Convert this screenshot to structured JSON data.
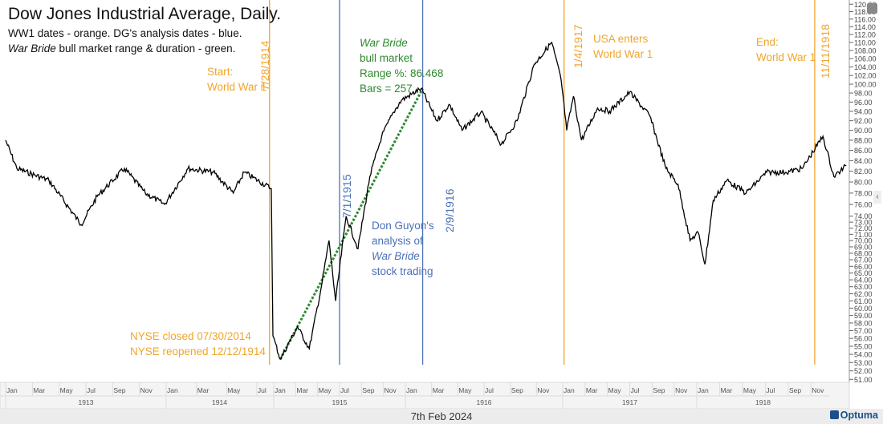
{
  "header": {
    "title": "Dow Jones Industrial Average, Daily.",
    "subtitle_line1": "WW1 dates - orange. DG's analysis dates - blue.",
    "subtitle_line2_italic": "War Bride",
    "subtitle_line2_rest": " bull market range & duration - green."
  },
  "annotations": {
    "start": [
      "Start:",
      "World War 1"
    ],
    "nyse": [
      "NYSE closed 07/30/2014",
      "NYSE reopened 12/12/1914"
    ],
    "war_bride": {
      "title": "War Bride",
      "lines": [
        "bull market",
        "Range %: 86.468",
        "Bars = 257"
      ]
    },
    "dg": {
      "line1": "Don Guyon's",
      "line2": "analysis of",
      "line3_italic": "War Bride",
      "line4": "stock trading"
    },
    "usa": [
      "USA enters",
      "World War 1"
    ],
    "end": [
      "End:",
      "World War 1"
    ],
    "date_labels": {
      "d1": "7/28/1914",
      "d2": "7/1/1915",
      "d3": "2/9/1916",
      "d4": "1/4/1917",
      "d5": "11/11/1918"
    }
  },
  "colors": {
    "ww1": "#f0a52c",
    "dg": "#4b70b8",
    "war_bride": "#2d8a2d",
    "price": "#000000"
  },
  "footer": {
    "date": "7th Feb 2024",
    "logo": "Optuma"
  },
  "chart_data": {
    "type": "line",
    "title": "Dow Jones Industrial Average, Daily.",
    "yscale": "log",
    "ylim": [
      51,
      120
    ],
    "y_ticks": [
      120,
      118,
      116,
      114,
      112,
      110,
      108,
      106,
      104,
      102,
      100,
      98,
      96,
      94,
      92,
      90,
      88,
      86,
      84,
      82,
      80,
      78,
      76,
      74,
      73,
      72,
      71,
      70,
      69,
      68,
      67,
      66,
      65,
      64,
      63,
      62,
      61,
      60,
      59,
      58,
      57,
      56,
      55,
      54,
      53,
      52,
      51
    ],
    "x_month_ticks": [
      {
        "t": 1913.0,
        "label": "Jan"
      },
      {
        "t": 1913.167,
        "label": "Mar"
      },
      {
        "t": 1913.333,
        "label": "May"
      },
      {
        "t": 1913.5,
        "label": "Jul"
      },
      {
        "t": 1913.667,
        "label": "Sep"
      },
      {
        "t": 1913.833,
        "label": "Nov"
      },
      {
        "t": 1914.0,
        "label": "Jan"
      },
      {
        "t": 1914.167,
        "label": "Mar"
      },
      {
        "t": 1914.333,
        "label": "May"
      },
      {
        "t": 1914.5,
        "label": "Jul"
      },
      {
        "t": 1915.0,
        "label": "Jan"
      },
      {
        "t": 1915.167,
        "label": "Mar"
      },
      {
        "t": 1915.333,
        "label": "May"
      },
      {
        "t": 1915.5,
        "label": "Jul"
      },
      {
        "t": 1915.667,
        "label": "Sep"
      },
      {
        "t": 1915.833,
        "label": "Nov"
      },
      {
        "t": 1916.0,
        "label": "Jan"
      },
      {
        "t": 1916.167,
        "label": "Mar"
      },
      {
        "t": 1916.333,
        "label": "May"
      },
      {
        "t": 1916.5,
        "label": "Jul"
      },
      {
        "t": 1916.667,
        "label": "Sep"
      },
      {
        "t": 1916.833,
        "label": "Nov"
      },
      {
        "t": 1917.0,
        "label": "Jan"
      },
      {
        "t": 1917.167,
        "label": "Mar"
      },
      {
        "t": 1917.333,
        "label": "May"
      },
      {
        "t": 1917.5,
        "label": "Jul"
      },
      {
        "t": 1917.667,
        "label": "Sep"
      },
      {
        "t": 1917.833,
        "label": "Nov"
      },
      {
        "t": 1918.0,
        "label": "Jan"
      },
      {
        "t": 1918.167,
        "label": "Mar"
      },
      {
        "t": 1918.333,
        "label": "May"
      },
      {
        "t": 1918.5,
        "label": "Jul"
      },
      {
        "t": 1918.667,
        "label": "Sep"
      },
      {
        "t": 1918.833,
        "label": "Nov"
      }
    ],
    "x_years": [
      {
        "label": "1913",
        "start": 1913,
        "end": 1914
      },
      {
        "label": "1914",
        "start": 1914,
        "end": 1914.95
      },
      {
        "label": "1915",
        "start": 1915,
        "end": 1916
      },
      {
        "label": "1916",
        "start": 1916,
        "end": 1917
      },
      {
        "label": "1917",
        "start": 1917,
        "end": 1918
      },
      {
        "label": "1918",
        "start": 1918,
        "end": 1919.2
      }
    ],
    "series": [
      {
        "name": "DJIA",
        "t": [
          1913.0,
          1913.07,
          1913.27,
          1913.47,
          1913.57,
          1913.74,
          1913.87,
          1913.99,
          1914.12,
          1914.26,
          1914.37,
          1914.43,
          1914.58,
          1914.95,
          1915.05,
          1915.18,
          1915.27,
          1915.36,
          1915.42,
          1915.47,
          1915.55,
          1915.64,
          1915.73,
          1915.82,
          1915.91,
          1915.97,
          1916.1,
          1916.2,
          1916.28,
          1916.36,
          1916.48,
          1916.61,
          1916.71,
          1916.82,
          1916.93,
          1916.99,
          1917.03,
          1917.08,
          1917.14,
          1917.26,
          1917.35,
          1917.5,
          1917.65,
          1917.77,
          1917.86,
          1917.95,
          1918.01,
          1918.06,
          1918.12,
          1918.22,
          1918.36,
          1918.51,
          1918.65,
          1918.77,
          1918.92,
          1919.0,
          1919.09
        ],
        "values": [
          88,
          82.5,
          80.3,
          72.6,
          77.4,
          82.5,
          78,
          76,
          82.5,
          81.8,
          78,
          81.8,
          78.8,
          56.3,
          53.4,
          57.5,
          54.7,
          62.8,
          70,
          61,
          74,
          68.7,
          81,
          88.8,
          93.8,
          96.4,
          99,
          92,
          95.5,
          90,
          93.8,
          87.2,
          92,
          104.7,
          110,
          101,
          90,
          97.3,
          88,
          94.7,
          94,
          98.2,
          93,
          82.5,
          79.6,
          70,
          71.3,
          66.3,
          76.7,
          80.3,
          78,
          81.8,
          81.8,
          82.5,
          88.8,
          81,
          83
        ]
      }
    ],
    "vertical_lines": [
      {
        "t": 1914.57,
        "label": "7/28/1914",
        "group": "ww1"
      },
      {
        "t": 1915.5,
        "label": "7/1/1915",
        "group": "dg"
      },
      {
        "t": 1916.11,
        "label": "2/9/1916",
        "group": "dg"
      },
      {
        "t": 1917.01,
        "label": "1/4/1917",
        "group": "ww1"
      },
      {
        "t": 1918.86,
        "label": "11/11/1918",
        "group": "ww1"
      }
    ],
    "trend_line": {
      "from": {
        "t": 1915.05,
        "v": 53.4
      },
      "to": {
        "t": 1916.11,
        "v": 99
      },
      "range_pct": 86.468,
      "bars": 257
    }
  }
}
